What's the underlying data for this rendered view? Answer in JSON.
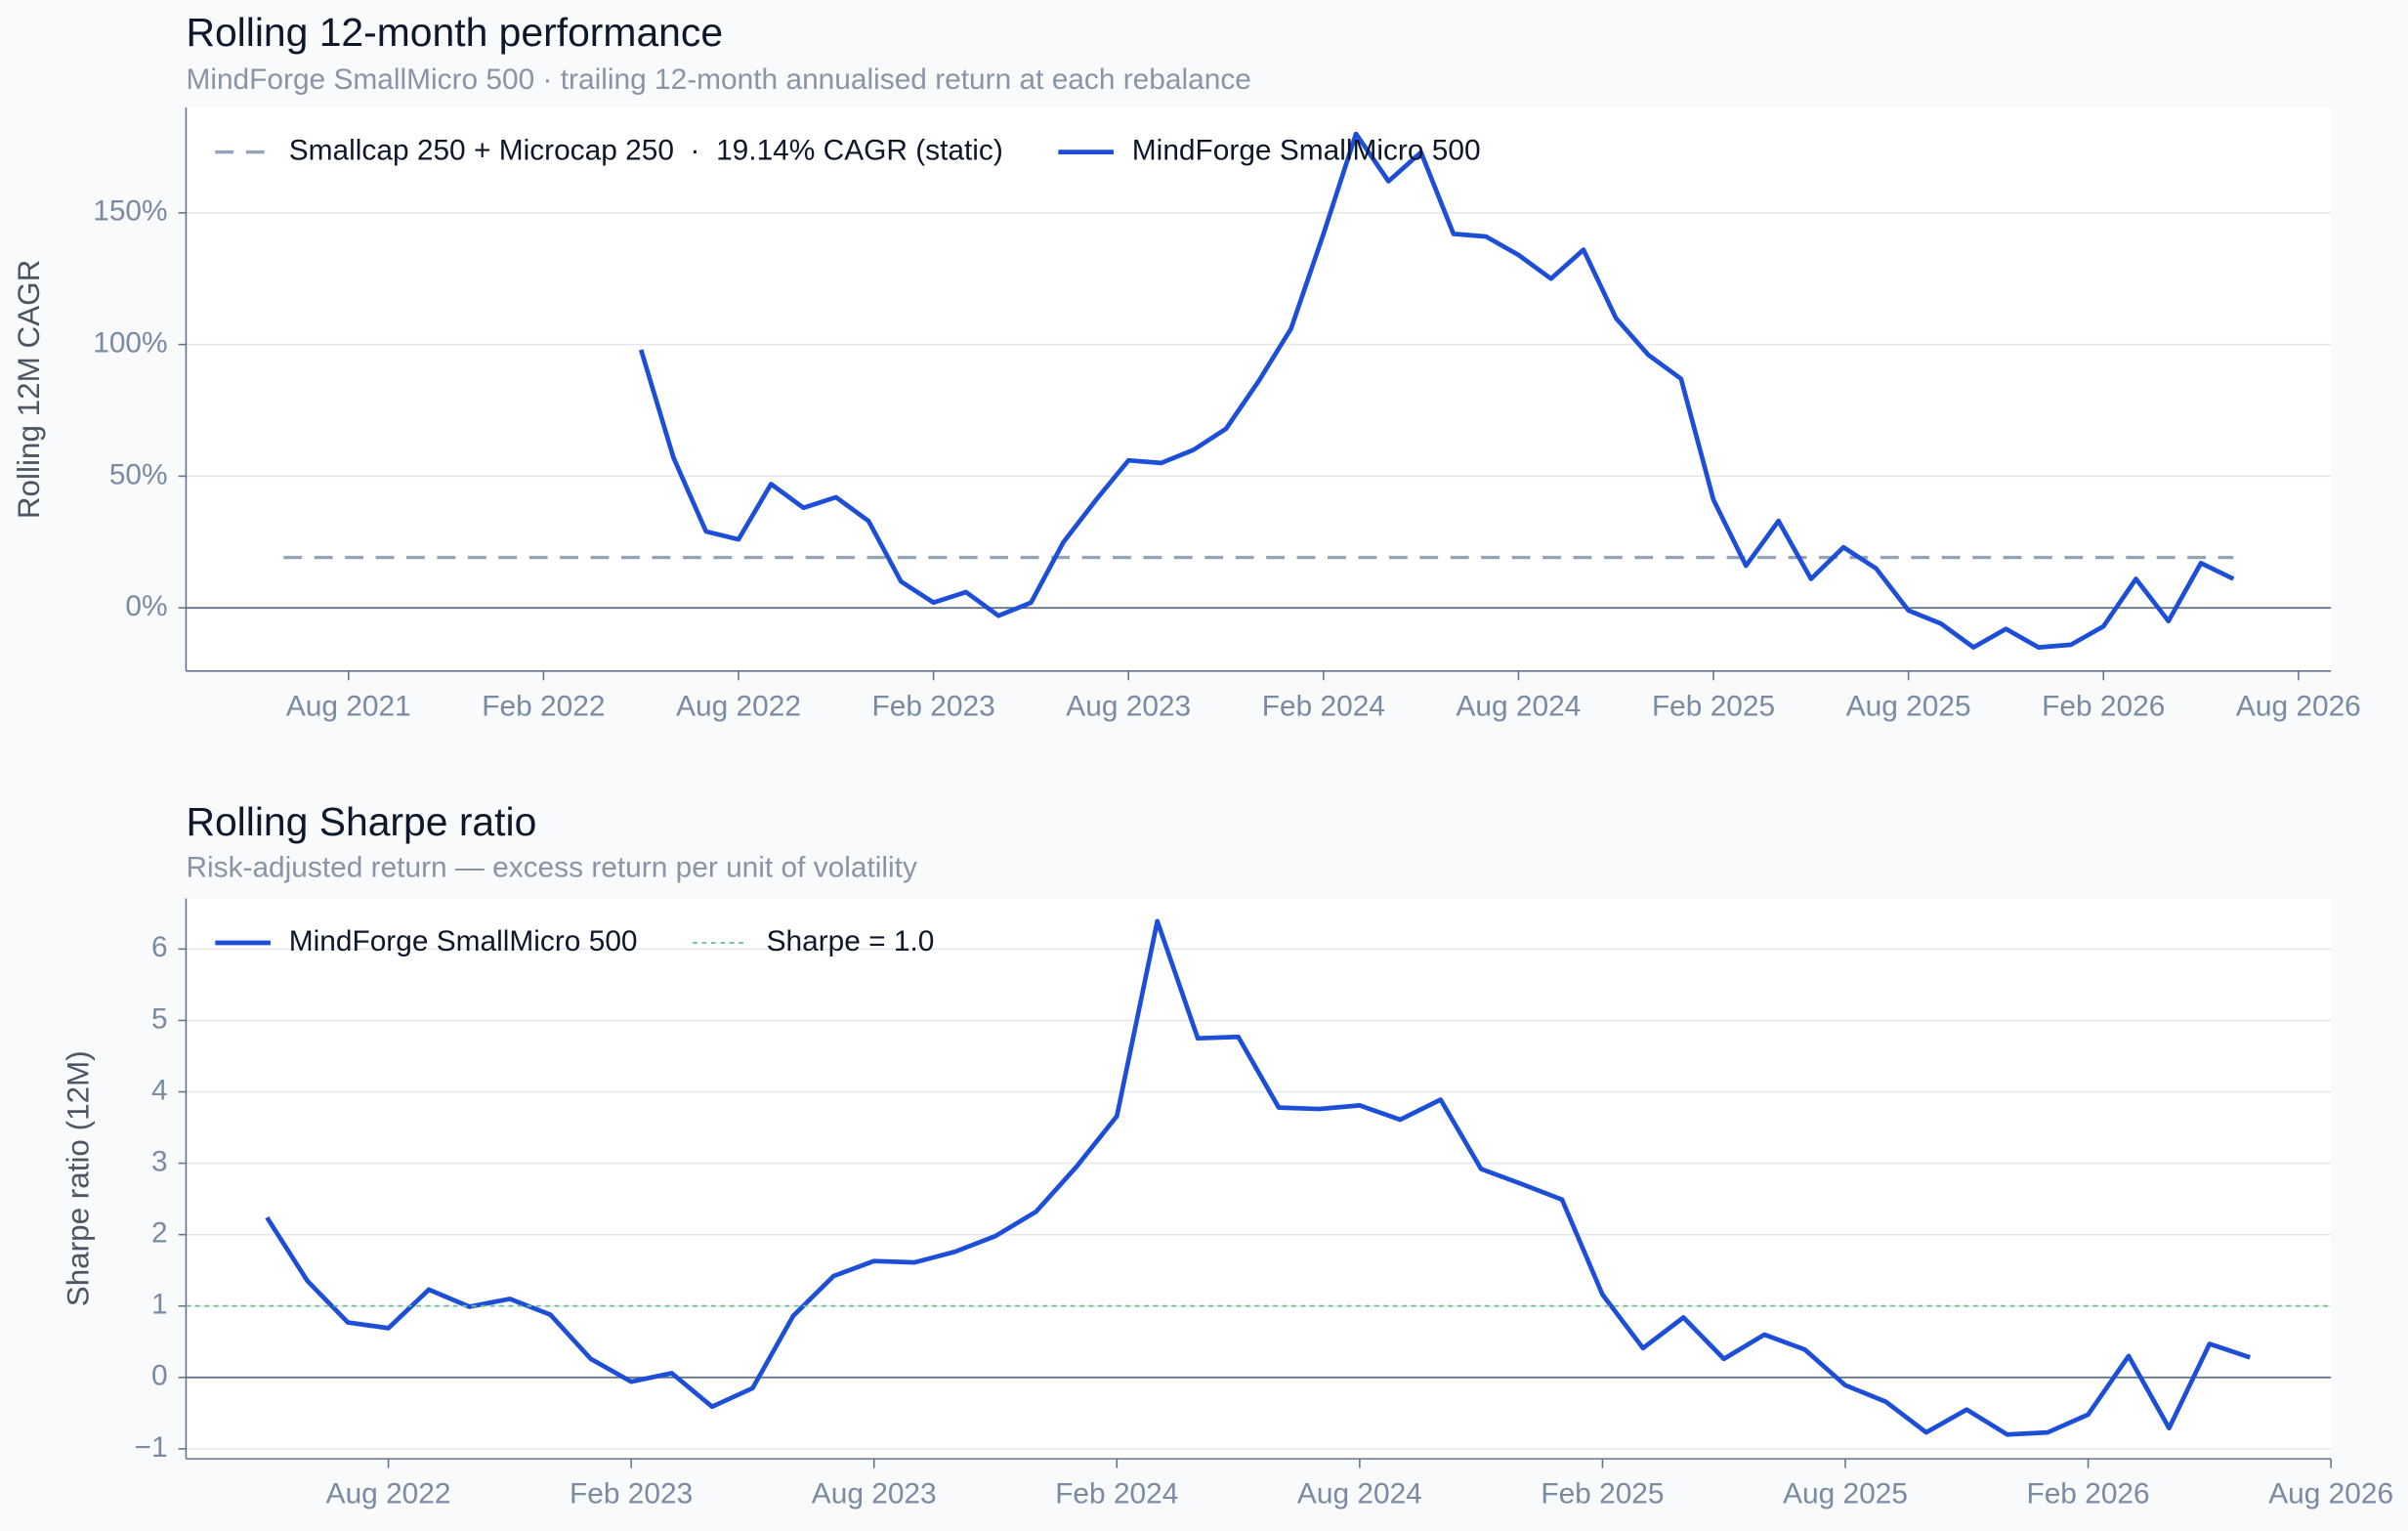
{
  "chart_data": [
    {
      "type": "line",
      "title": "Rolling 12-month performance",
      "subtitle": "MindForge SmallMicro 500  ·  trailing 12-month annualised return at each rebalance",
      "y_label": "Rolling 12M CAGR",
      "legend": "upper left",
      "grid": true,
      "xlim": [
        "2021-03",
        "2026-09"
      ],
      "xticks": [
        {
          "value": "2021-08",
          "label": "Aug 2021"
        },
        {
          "value": "2022-02",
          "label": "Feb 2022"
        },
        {
          "value": "2022-08",
          "label": "Aug 2022"
        },
        {
          "value": "2023-02",
          "label": "Feb 2023"
        },
        {
          "value": "2023-08",
          "label": "Aug 2023"
        },
        {
          "value": "2024-02",
          "label": "Feb 2024"
        },
        {
          "value": "2024-08",
          "label": "Aug 2024"
        },
        {
          "value": "2025-02",
          "label": "Feb 2025"
        },
        {
          "value": "2025-08",
          "label": "Aug 2025"
        },
        {
          "value": "2026-02",
          "label": "Feb 2026"
        },
        {
          "value": "2026-08",
          "label": "Aug 2026"
        }
      ],
      "ylim": [
        -24,
        190
      ],
      "yticks": [
        {
          "value": 0,
          "label": "0%"
        },
        {
          "value": 50,
          "label": "50%"
        },
        {
          "value": 100,
          "label": "100%"
        },
        {
          "value": 150,
          "label": "150%"
        }
      ],
      "series": [
        {
          "name": "Smallcap 250 + Microcap 250  ·  19.14% CAGR (static)",
          "color": "#94a3b8",
          "style": "dashed",
          "x": [
            "2021-06",
            "2026-06"
          ],
          "values": [
            19.14,
            19.14
          ]
        },
        {
          "name": "MindForge SmallMicro 500",
          "color": "#1d4ed8",
          "style": "solid",
          "x": [
            "2022-05",
            "2022-06",
            "2022-07",
            "2022-08",
            "2022-09",
            "2022-10",
            "2022-11",
            "2022-12",
            "2023-01",
            "2023-02",
            "2023-03",
            "2023-04",
            "2023-05",
            "2023-06",
            "2023-07",
            "2023-08",
            "2023-09",
            "2023-10",
            "2023-11",
            "2023-12",
            "2024-01",
            "2024-02",
            "2024-03",
            "2024-04",
            "2024-05",
            "2024-06",
            "2024-07",
            "2024-08",
            "2024-09",
            "2024-10",
            "2024-11",
            "2024-12",
            "2025-01",
            "2025-02",
            "2025-03",
            "2025-04",
            "2025-05",
            "2025-06",
            "2025-07",
            "2025-08",
            "2025-09",
            "2025-10",
            "2025-11",
            "2025-12",
            "2026-01",
            "2026-02",
            "2026-03",
            "2026-04",
            "2026-05",
            "2026-06"
          ],
          "values": [
            98,
            57,
            29,
            26,
            47,
            38,
            42,
            33,
            10,
            2,
            6,
            -3,
            2,
            25,
            41,
            56,
            55,
            60,
            68,
            86,
            106,
            142,
            180,
            162,
            173,
            142,
            141,
            134,
            125,
            136,
            110,
            96,
            87,
            41,
            16,
            33,
            11,
            23,
            15,
            -1,
            -6,
            -15,
            -8,
            -15,
            -14,
            -7,
            11,
            -5,
            17,
            11
          ]
        }
      ]
    },
    {
      "type": "line",
      "title": "Rolling Sharpe ratio",
      "subtitle": "Risk-adjusted return — excess return per unit of volatility",
      "y_label": "Sharpe ratio (12M)",
      "legend": "upper left",
      "grid": true,
      "xlim": [
        "2022-03",
        "2026-08"
      ],
      "xticks": [
        {
          "value": "2022-08",
          "label": "Aug 2022"
        },
        {
          "value": "2023-02",
          "label": "Feb 2023"
        },
        {
          "value": "2023-08",
          "label": "Aug 2023"
        },
        {
          "value": "2024-02",
          "label": "Feb 2024"
        },
        {
          "value": "2024-08",
          "label": "Aug 2024"
        },
        {
          "value": "2025-02",
          "label": "Feb 2025"
        },
        {
          "value": "2025-08",
          "label": "Aug 2025"
        },
        {
          "value": "2026-02",
          "label": "Feb 2026"
        },
        {
          "value": "2026-08",
          "label": "Aug 2026"
        }
      ],
      "ylim": [
        -1.14,
        6.71
      ],
      "yticks": [
        {
          "value": -1,
          "label": "−1"
        },
        0,
        1,
        2,
        3,
        4,
        5,
        6
      ],
      "series": [
        {
          "name": "MindForge SmallMicro 500",
          "color": "#1d4ed8",
          "style": "solid",
          "x": [
            "2022-05",
            "2022-06",
            "2022-07",
            "2022-08",
            "2022-09",
            "2022-10",
            "2022-11",
            "2022-12",
            "2023-01",
            "2023-02",
            "2023-03",
            "2023-04",
            "2023-05",
            "2023-06",
            "2023-07",
            "2023-08",
            "2023-09",
            "2023-10",
            "2023-11",
            "2023-12",
            "2024-01",
            "2024-02",
            "2024-03",
            "2024-04",
            "2024-05",
            "2024-06",
            "2024-07",
            "2024-08",
            "2024-09",
            "2024-10",
            "2024-11",
            "2024-12",
            "2025-01",
            "2025-02",
            "2025-03",
            "2025-04",
            "2025-05",
            "2025-06",
            "2025-07",
            "2025-08",
            "2025-09",
            "2025-10",
            "2025-11",
            "2025-12",
            "2026-01",
            "2026-02",
            "2026-03",
            "2026-04",
            "2026-05",
            "2026-06"
          ],
          "values": [
            2.24,
            1.35,
            0.77,
            0.69,
            1.23,
            0.99,
            1.1,
            0.88,
            0.26,
            -0.06,
            0.06,
            -0.41,
            -0.15,
            0.86,
            1.42,
            1.63,
            1.61,
            1.76,
            1.98,
            2.32,
            2.95,
            3.66,
            6.39,
            4.75,
            4.77,
            3.78,
            3.76,
            3.81,
            3.61,
            3.89,
            2.92,
            2.71,
            2.49,
            1.16,
            0.41,
            0.84,
            0.26,
            0.6,
            0.39,
            -0.11,
            -0.34,
            -0.77,
            -0.45,
            -0.8,
            -0.77,
            -0.52,
            0.3,
            -0.71,
            0.47,
            0.28
          ]
        },
        {
          "name": "Sharpe = 1.0",
          "color": "#6fbf98",
          "style": "dotted",
          "x": [
            "2022-03",
            "2026-08"
          ],
          "values": [
            1,
            1
          ]
        }
      ]
    }
  ]
}
